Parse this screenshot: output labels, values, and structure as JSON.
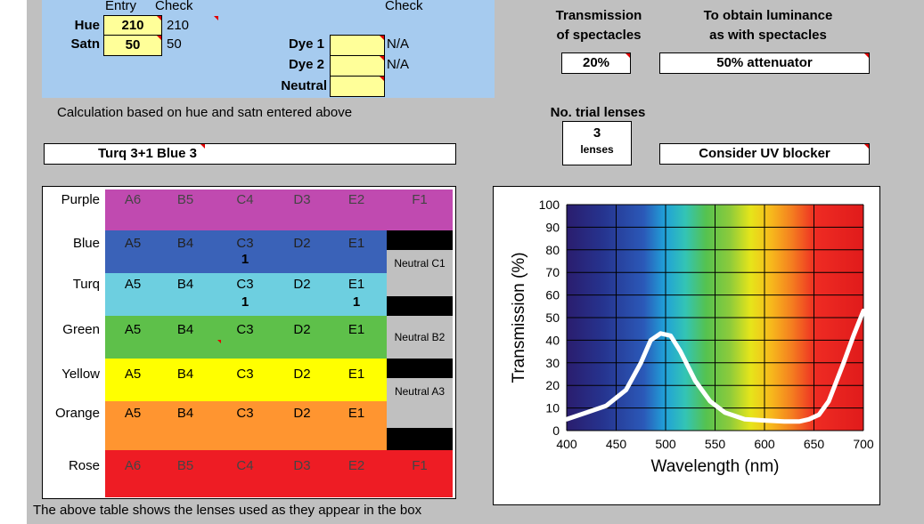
{
  "inputs": {
    "entry_header": "Entry",
    "check_header": "Check",
    "hue_label": "Hue",
    "hue_value": "210",
    "hue_check": "210",
    "satn_label": "Satn",
    "satn_value": "50",
    "satn_check": "50",
    "dye_check_header": "Check",
    "dye1_label": "Dye 1",
    "dye1_value": "",
    "dye1_check": "N/A",
    "dye2_label": "Dye 2",
    "dye2_value": "",
    "dye2_check": "N/A",
    "neutral_label": "Neutral",
    "neutral_value": ""
  },
  "calc_note": "Calculation based on  hue and satn entered above",
  "result": "Turq 3+1  Blue 3",
  "transmission": {
    "title_line1": "Transmission",
    "title_line2": "of spectacles",
    "value": "20%"
  },
  "luminance": {
    "title_line1": "To obtain luminance",
    "title_line2": "as with spectacles",
    "value": "50% attenuator"
  },
  "trial_lenses": {
    "title": "No. trial lenses",
    "count": "3",
    "unit": "lenses"
  },
  "uv_note": "Consider UV blocker",
  "lens_table": {
    "rows": [
      {
        "label": "Purple",
        "color": "#c04ab0",
        "cells": [
          "A6",
          "B5",
          "C4",
          "D3",
          "E2",
          "F1"
        ]
      },
      {
        "label": "Blue",
        "color": "#3a62b8",
        "cells": [
          "A5",
          "B4",
          "C3",
          "D2",
          "E1"
        ],
        "counts": [
          "",
          "",
          "1",
          "",
          ""
        ]
      },
      {
        "label": "Turq",
        "color": "#6dcfe0",
        "cells": [
          "A5",
          "B4",
          "C3",
          "D2",
          "E1"
        ],
        "counts": [
          "",
          "",
          "1",
          "",
          "1"
        ]
      },
      {
        "label": "Green",
        "color": "#5ec04a",
        "cells": [
          "A5",
          "B4",
          "C3",
          "D2",
          "E1"
        ]
      },
      {
        "label": "Yellow",
        "color": "#ffff00",
        "cells": [
          "A5",
          "B4",
          "C3",
          "D2",
          "E1"
        ]
      },
      {
        "label": "Orange",
        "color": "#ff9530",
        "cells": [
          "A5",
          "B4",
          "C3",
          "D2",
          "E1"
        ]
      },
      {
        "label": "Rose",
        "color": "#ee1c24",
        "cells": [
          "A6",
          "B5",
          "C4",
          "D3",
          "E2",
          "F1"
        ]
      }
    ],
    "neutrals": [
      "Neutral C1",
      "Neutral B2",
      "Neutral A3"
    ]
  },
  "footer": "The above table shows the lenses used as they appear in the box",
  "chart_data": {
    "type": "line",
    "title": "",
    "xlabel": "Wavelength (nm)",
    "ylabel": "Transmission (%)",
    "xlim": [
      400,
      700
    ],
    "ylim": [
      0,
      100
    ],
    "xticks": [
      400,
      450,
      500,
      550,
      600,
      650,
      700
    ],
    "yticks": [
      0,
      10,
      20,
      30,
      40,
      50,
      60,
      70,
      80,
      90,
      100
    ],
    "grid": true,
    "background": "visible spectrum gradient",
    "series": [
      {
        "color": "#ffffff",
        "x": [
          400,
          420,
          440,
          460,
          475,
          485,
          495,
          505,
          515,
          530,
          545,
          560,
          580,
          600,
          620,
          635,
          645,
          655,
          665,
          680,
          690,
          700
        ],
        "y": [
          5,
          8,
          11,
          18,
          30,
          40,
          43,
          42,
          35,
          22,
          13,
          8,
          5,
          4.5,
          4,
          4,
          5,
          7,
          13,
          30,
          42,
          53
        ]
      }
    ]
  }
}
